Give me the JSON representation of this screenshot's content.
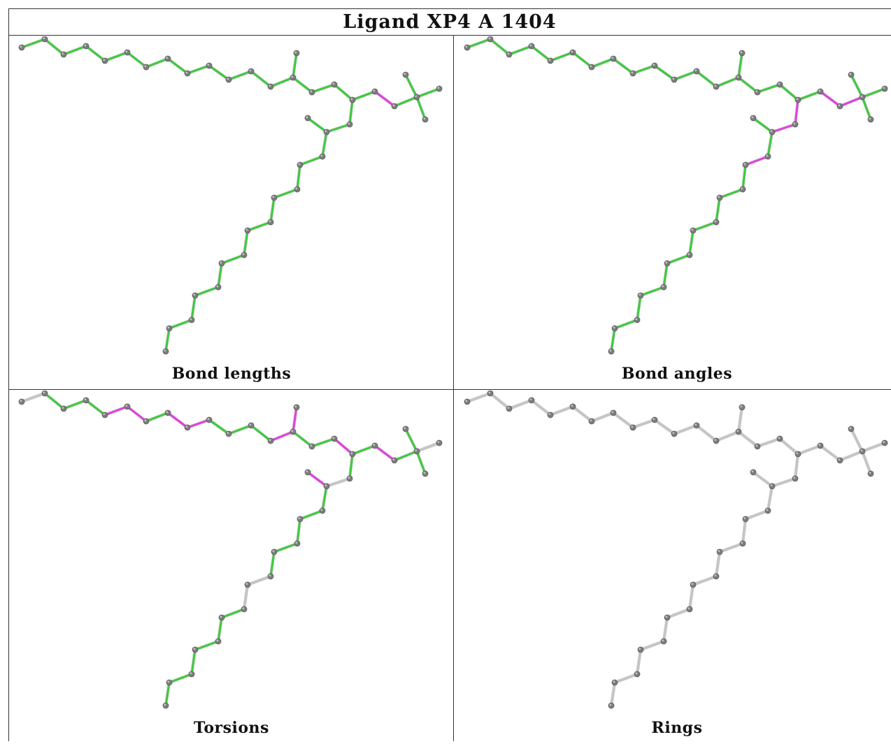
{
  "title": "Ligand XP4 A 1404",
  "colors": {
    "ok": "#3ec93e",
    "outlier": "#e040e0",
    "neutral": "#c4c4c4",
    "atom": "#7d7d7d"
  },
  "panels": [
    {
      "id": "bond-lengths",
      "caption": "Bond lengths",
      "highlight": [
        [
          34,
          35
        ],
        [
          44,
          45
        ]
      ],
      "neutral": []
    },
    {
      "id": "bond-angles",
      "caption": "Bond angles",
      "highlight": [
        [
          17,
          18
        ],
        [
          18,
          19
        ],
        [
          21,
          22
        ],
        [
          33,
          34
        ],
        [
          34,
          35
        ],
        [
          35,
          36
        ]
      ],
      "neutral": []
    },
    {
      "id": "torsions",
      "caption": "Torsions",
      "highlight": [
        [
          4,
          5
        ],
        [
          5,
          6
        ],
        [
          7,
          8
        ],
        [
          8,
          9
        ],
        [
          12,
          13
        ],
        [
          13,
          14
        ],
        [
          16,
          17
        ],
        [
          17,
          19
        ],
        [
          19,
          20
        ],
        [
          34,
          35
        ],
        [
          39,
          40
        ]
      ],
      "neutral": [
        [
          0,
          1
        ],
        [
          18,
          19
        ],
        [
          25,
          26
        ],
        [
          26,
          27
        ],
        [
          26,
          28
        ],
        [
          36,
          38
        ]
      ]
    },
    {
      "id": "rings",
      "caption": "Rings",
      "highlight": [],
      "neutral": "all"
    }
  ]
}
